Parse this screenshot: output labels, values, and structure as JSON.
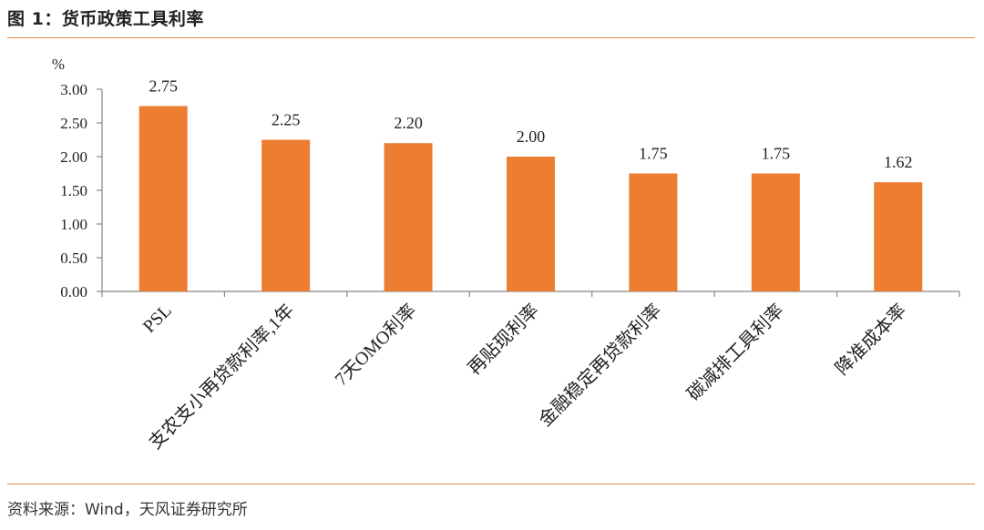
{
  "figure": {
    "title": "图 1：货币政策工具利率",
    "source": "资料来源：Wind，天风证券研究所"
  },
  "colors": {
    "bar": "#ed7d31",
    "rule": "#e58a3d",
    "axis": "#888888"
  },
  "chart_data": {
    "type": "bar",
    "ylabel": "%",
    "ylim": [
      0,
      3.0
    ],
    "yticks": [
      0.0,
      0.5,
      1.0,
      1.5,
      2.0,
      2.5,
      3.0
    ],
    "ytick_labels": [
      "0.00",
      "0.50",
      "1.00",
      "1.50",
      "2.00",
      "2.50",
      "3.00"
    ],
    "categories": [
      "PSL",
      "支农支小再贷款利率,1年",
      "7天OMO利率",
      "再贴现利率",
      "金融稳定再贷款利率",
      "碳减排工具利率",
      "降准成本率"
    ],
    "values": [
      2.75,
      2.25,
      2.2,
      2.0,
      1.75,
      1.75,
      1.62
    ],
    "value_labels": [
      "2.75",
      "2.25",
      "2.20",
      "2.00",
      "1.75",
      "1.75",
      "1.62"
    ],
    "grid": false,
    "legend": "none"
  }
}
